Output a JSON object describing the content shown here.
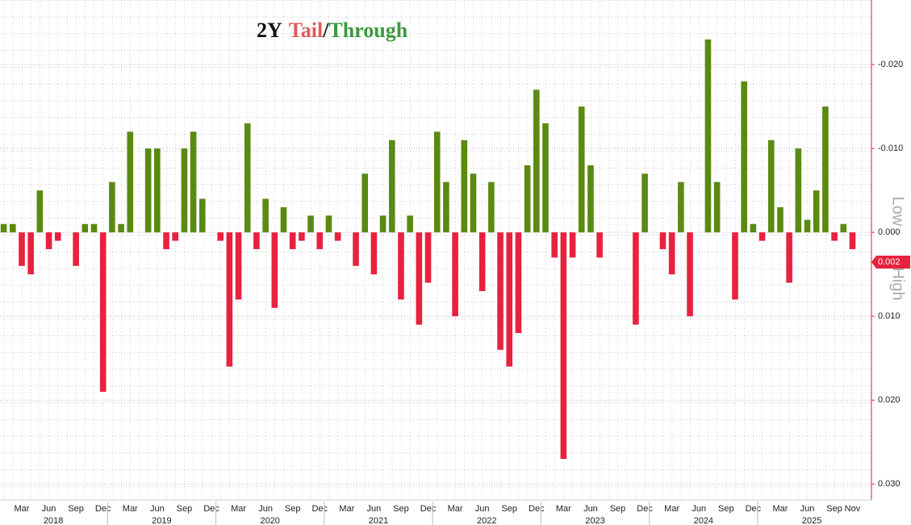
{
  "chart_data": {
    "type": "bar",
    "title_parts": [
      {
        "text": "2Y",
        "color": "#111111"
      },
      {
        "text": "Tail",
        "color": "#e05a5a"
      },
      {
        "text": "/",
        "color": "#111111"
      },
      {
        "text": "Through",
        "color": "#3c9a3c"
      }
    ],
    "y_axis_labels": [
      "Low",
      "High"
    ],
    "categories": [
      null,
      null,
      "Mar",
      null,
      null,
      "Jun",
      null,
      null,
      "Sep",
      null,
      null,
      "Dec",
      null,
      null,
      "Mar",
      null,
      null,
      "Jun",
      null,
      null,
      "Sep",
      null,
      null,
      "Dec",
      null,
      null,
      "Mar",
      null,
      null,
      "Jun",
      null,
      null,
      "Sep",
      null,
      null,
      "Dec",
      null,
      null,
      "Mar",
      null,
      null,
      "Jun",
      null,
      null,
      "Sep",
      null,
      null,
      "Dec",
      null,
      null,
      "Mar",
      null,
      null,
      "Jun",
      null,
      null,
      "Sep",
      null,
      null,
      "Dec",
      null,
      null,
      "Mar",
      null,
      null,
      "Jun",
      null,
      null,
      "Sep",
      null,
      null,
      "Dec",
      null,
      null,
      "Mar",
      null,
      null,
      "Jun",
      null,
      null,
      "Sep",
      null,
      null,
      "Dec",
      null,
      null,
      "Mar",
      null,
      null,
      "Jun",
      null,
      null,
      "Sep",
      null,
      "Nov"
    ],
    "years": [
      "2018",
      "2019",
      "2020",
      "2021",
      "2022",
      "2023",
      "2024",
      "2025"
    ],
    "values": [
      -0.001,
      -0.001,
      0.004,
      0.005,
      -0.005,
      0.002,
      0.001,
      0,
      0.004,
      -0.001,
      -0.001,
      0.019,
      -0.006,
      -0.001,
      -0.012,
      0,
      -0.01,
      -0.01,
      0.002,
      0.001,
      -0.01,
      -0.012,
      -0.004,
      0,
      0.001,
      0.016,
      0.008,
      -0.013,
      0.002,
      -0.004,
      0.009,
      -0.003,
      0.002,
      0.001,
      -0.002,
      0.002,
      -0.002,
      0.001,
      0,
      0.004,
      -0.007,
      0.005,
      -0.002,
      -0.011,
      0.008,
      -0.002,
      0.011,
      0.006,
      -0.012,
      -0.006,
      0.01,
      -0.011,
      -0.007,
      0.007,
      -0.006,
      0.014,
      0.016,
      0.012,
      -0.008,
      -0.017,
      -0.013,
      0.003,
      0.027,
      0.003,
      -0.015,
      -0.008,
      0.003,
      0,
      0,
      0,
      0.011,
      -0.007,
      0,
      0.002,
      0.005,
      -0.006,
      0.01,
      0,
      -0.023,
      -0.006,
      0,
      0.008,
      -0.018,
      -0.001,
      0.001,
      -0.011,
      -0.003,
      0.006,
      -0.01,
      -0.0015,
      -0.005,
      -0.015,
      0.001,
      -0.001,
      0.002
    ],
    "last_value_label": "0.002",
    "positive_color": "#e8213f",
    "negative_color": "#5a8a12",
    "ylim": [
      0.0319,
      -0.0277
    ],
    "yticks": [
      {
        "value": -0.02,
        "label": "-0.020"
      },
      {
        "value": -0.01,
        "label": "-0.010"
      },
      {
        "value": 0,
        "label": "0.000"
      },
      {
        "value": 0.01,
        "label": "0.010"
      },
      {
        "value": 0.02,
        "label": "0.020"
      },
      {
        "value": 0.03,
        "label": "0.030"
      }
    ],
    "grid": true
  }
}
